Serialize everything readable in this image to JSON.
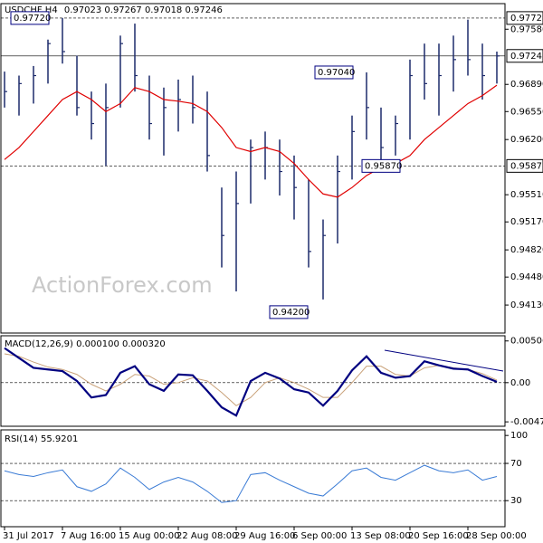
{
  "chart_data": [
    {
      "type": "ohlc",
      "title": "USDCHF,H4",
      "subtitle": "0.97023 0.97267 0.97018 0.97246",
      "watermark": "ActionForex.com",
      "color": "#1c2a6b",
      "high": [
        0.9705,
        0.97,
        0.9712,
        0.9745,
        0.9772,
        0.9725,
        0.968,
        0.969,
        0.975,
        0.9765,
        0.97,
        0.9685,
        0.9695,
        0.97,
        0.968,
        0.956,
        0.958,
        0.962,
        0.963,
        0.962,
        0.96,
        0.957,
        0.952,
        0.96,
        0.965,
        0.9704,
        0.966,
        0.965,
        0.972,
        0.974,
        0.974,
        0.975,
        0.977,
        0.974,
        0.973
      ],
      "low": [
        0.966,
        0.965,
        0.9665,
        0.969,
        0.9715,
        0.965,
        0.962,
        0.9587,
        0.966,
        0.968,
        0.962,
        0.96,
        0.963,
        0.964,
        0.958,
        0.946,
        0.943,
        0.954,
        0.957,
        0.955,
        0.952,
        0.946,
        0.942,
        0.949,
        0.957,
        0.962,
        0.959,
        0.96,
        0.962,
        0.967,
        0.965,
        0.968,
        0.97,
        0.967,
        0.969
      ],
      "close": [
        0.968,
        0.969,
        0.97,
        0.974,
        0.973,
        0.966,
        0.964,
        0.966,
        0.974,
        0.97,
        0.964,
        0.966,
        0.967,
        0.966,
        0.96,
        0.95,
        0.954,
        0.961,
        0.961,
        0.958,
        0.956,
        0.948,
        0.95,
        0.958,
        0.963,
        0.966,
        0.961,
        0.964,
        0.97,
        0.969,
        0.97,
        0.972,
        0.972,
        0.97,
        0.97246
      ],
      "ma": {
        "color": "#e00000",
        "values": [
          0.9595,
          0.961,
          0.963,
          0.965,
          0.967,
          0.968,
          0.967,
          0.9655,
          0.9665,
          0.9685,
          0.968,
          0.967,
          0.9668,
          0.9665,
          0.9655,
          0.9635,
          0.961,
          0.9605,
          0.961,
          0.9605,
          0.959,
          0.957,
          0.9552,
          0.9548,
          0.956,
          0.9575,
          0.9585,
          0.959,
          0.96,
          0.962,
          0.9635,
          0.965,
          0.9665,
          0.9675,
          0.9688
        ]
      },
      "ylim": [
        0.9378,
        0.979
      ],
      "yticks": [
        {
          "value": 0.9758,
          "label": "0.97580"
        },
        {
          "value": 0.9689,
          "label": "0.96890"
        },
        {
          "value": 0.9655,
          "label": "0.96550"
        },
        {
          "value": 0.962,
          "label": "0.96200"
        },
        {
          "value": 0.9551,
          "label": "0.95510"
        },
        {
          "value": 0.9517,
          "label": "0.95170"
        },
        {
          "value": 0.9482,
          "label": "0.94820"
        },
        {
          "value": 0.9448,
          "label": "0.94480"
        },
        {
          "value": 0.9413,
          "label": "0.94130"
        }
      ],
      "levels": [
        {
          "value": 0.9772,
          "label": "0.97720",
          "style": "dashed"
        },
        {
          "value": 0.97246,
          "label": "0.97246",
          "style": "solid"
        },
        {
          "value": 0.9587,
          "label": "0.95870",
          "style": "dashed"
        }
      ],
      "annotations": [
        {
          "value": 0.9772,
          "label": "0.97720"
        },
        {
          "value": 0.9704,
          "label": "0.97040"
        },
        {
          "value": 0.9587,
          "label": "0.95870"
        },
        {
          "value": 0.942,
          "label": "0.94200"
        }
      ]
    },
    {
      "type": "macd",
      "title": "MACD(12,26,9) 0.000100 0.000320",
      "series": [
        {
          "color": "#000080",
          "values": [
            0.0042,
            0.003,
            0.0018,
            0.0016,
            0.0014,
            0.0002,
            -0.0018,
            -0.0015,
            0.0012,
            0.002,
            -0.0002,
            -0.001,
            0.001,
            0.0009,
            -0.001,
            -0.003,
            -0.004,
            0.0002,
            0.0012,
            0.0005,
            -0.0008,
            -0.0012,
            -0.0028,
            -0.001,
            0.0015,
            0.0032,
            0.0012,
            0.0006,
            0.0008,
            0.0026,
            0.0021,
            0.0017,
            0.0016,
            0.0008,
            0.0001
          ]
        },
        {
          "color": "#c9a27a",
          "values": [
            0.0035,
            0.0032,
            0.0025,
            0.0019,
            0.0016,
            0.001,
            -0.0002,
            -0.001,
            -0.0002,
            0.001,
            0.0008,
            -0.0002,
            0.0,
            0.0006,
            0.0002,
            -0.0012,
            -0.0028,
            -0.0018,
            0.0,
            0.0006,
            0.0,
            -0.0008,
            -0.0018,
            -0.0018,
            0.0,
            0.002,
            0.002,
            0.001,
            0.0008,
            0.0018,
            0.0021,
            0.0018,
            0.0016,
            0.0011,
            0.00032
          ]
        }
      ],
      "ylim": [
        -0.0053,
        0.0057
      ],
      "yticks": [
        0.005068,
        {
          "value": 0,
          "label": "0.00"
        },
        -0.004765
      ]
    },
    {
      "type": "rsi",
      "title": "RSI(14) 55.9201",
      "color": "#3a7bd5",
      "values": [
        62,
        58,
        56,
        60,
        63,
        45,
        40,
        48,
        65,
        55,
        42,
        50,
        55,
        50,
        40,
        28,
        30,
        58,
        60,
        52,
        45,
        38,
        35,
        48,
        62,
        65,
        55,
        52,
        60,
        68,
        62,
        60,
        63,
        52,
        55.9201
      ],
      "levels": [
        70,
        30
      ],
      "ylim": [
        2,
        106
      ],
      "yticks": [
        100,
        70,
        30
      ],
      "categories": [
        "31 Jul 2017",
        null,
        null,
        null,
        "7 Aug 16:00",
        null,
        null,
        null,
        "15 Aug 00:00",
        null,
        null,
        null,
        "22 Aug 08:00",
        null,
        null,
        null,
        "29 Aug 16:00",
        null,
        null,
        null,
        "6 Sep 00:00",
        null,
        null,
        null,
        "13 Sep 08:00",
        null,
        null,
        null,
        "20 Sep 16:00",
        null,
        null,
        null,
        "28 Sep 00:00",
        null,
        null
      ]
    }
  ]
}
